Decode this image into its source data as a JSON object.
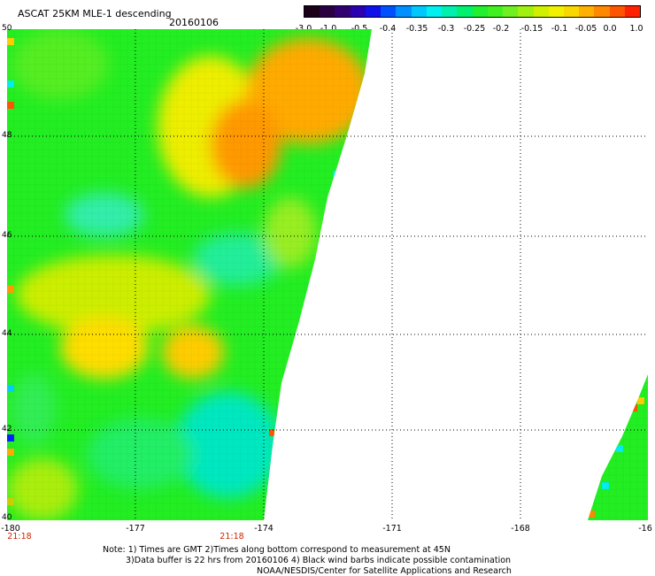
{
  "header": {
    "title": "ASCAT 25KM MLE-1 descending",
    "date": "20160106"
  },
  "colorbar": {
    "ticks": [
      "-3.0",
      "-1.0",
      "-0.5",
      "-0.4",
      "-0.35",
      "-0.3",
      "-0.25",
      "-0.2",
      "-0.15",
      "-0.1",
      "-0.05",
      "0.0",
      "1.0"
    ]
  },
  "map": {
    "lat_labels": [
      "50",
      "48",
      "46",
      "44",
      "42",
      "40"
    ],
    "lon_labels": [
      "-180",
      "-177",
      "-174",
      "-171",
      "-168",
      "-16"
    ],
    "time_labels": [
      "21:18",
      "21:18"
    ]
  },
  "notes": {
    "line1": "Note: 1) Times are GMT 2)Times along bottom correspond to measurement at 45N",
    "line2": "3)Data buffer is 22 hrs from 20160106 4) Black wind barbs indicate possible contamination",
    "line3": "NOAA/NESDIS/Center for Satellite Applications and Research"
  },
  "colors": {
    "green": "#22ee22",
    "yellow": "#eeee00",
    "orange": "#ff9900",
    "cyan": "#00eeee"
  }
}
